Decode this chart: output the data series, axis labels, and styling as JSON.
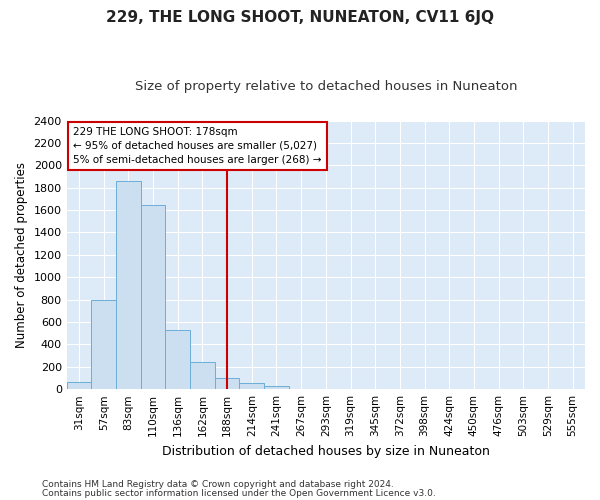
{
  "title": "229, THE LONG SHOOT, NUNEATON, CV11 6JQ",
  "subtitle": "Size of property relative to detached houses in Nuneaton",
  "xlabel": "Distribution of detached houses by size in Nuneaton",
  "ylabel": "Number of detached properties",
  "bar_labels": [
    "31sqm",
    "57sqm",
    "83sqm",
    "110sqm",
    "136sqm",
    "162sqm",
    "188sqm",
    "214sqm",
    "241sqm",
    "267sqm",
    "293sqm",
    "319sqm",
    "345sqm",
    "372sqm",
    "398sqm",
    "424sqm",
    "450sqm",
    "476sqm",
    "503sqm",
    "529sqm",
    "555sqm"
  ],
  "bar_values": [
    60,
    800,
    1860,
    1650,
    530,
    240,
    100,
    55,
    30,
    0,
    0,
    0,
    0,
    0,
    0,
    0,
    0,
    0,
    0,
    0,
    0
  ],
  "bar_color": "#ccdff0",
  "bar_edge_color": "#6aaed6",
  "highlight_index": 6,
  "vline_color": "#cc0000",
  "ylim": [
    0,
    2400
  ],
  "yticks": [
    0,
    200,
    400,
    600,
    800,
    1000,
    1200,
    1400,
    1600,
    1800,
    2000,
    2200,
    2400
  ],
  "annotation_line1": "229 THE LONG SHOOT: 178sqm",
  "annotation_line2": "← 95% of detached houses are smaller (5,027)",
  "annotation_line3": "5% of semi-detached houses are larger (268) →",
  "annotation_box_color": "#ffffff",
  "annotation_box_edge": "#cc0000",
  "footer_line1": "Contains HM Land Registry data © Crown copyright and database right 2024.",
  "footer_line2": "Contains public sector information licensed under the Open Government Licence v3.0.",
  "plot_bg_color": "#ddeaf7",
  "fig_bg_color": "#ffffff",
  "grid_color": "#ffffff",
  "title_fontsize": 11,
  "subtitle_fontsize": 9.5,
  "ylabel_fontsize": 8.5,
  "xlabel_fontsize": 9,
  "tick_fontsize": 7.5,
  "footer_fontsize": 6.5
}
